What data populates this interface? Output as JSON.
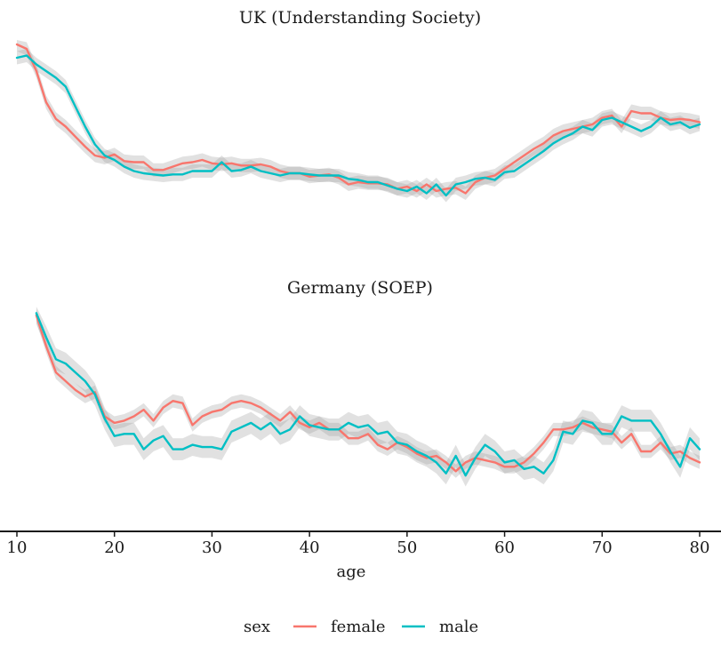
{
  "chart_data": {
    "type": "line",
    "xlabel": "age",
    "xlim": [
      10,
      80
    ],
    "x_ticks": [
      10,
      20,
      30,
      40,
      50,
      60,
      70,
      80
    ],
    "y_ticks_visible": false,
    "grid": false,
    "legend": {
      "title": "sex",
      "position": "bottom",
      "entries": [
        {
          "label": "female",
          "color": "#F8766D"
        },
        {
          "label": "male",
          "color": "#00BFC4"
        }
      ]
    },
    "panels": [
      {
        "title": "UK (Understanding Society)",
        "ylim": [
          0,
          1
        ],
        "series": [
          {
            "name": "female",
            "color": "#F8766D",
            "x": [
              10,
              11,
              12,
              13,
              14,
              15,
              16,
              17,
              18,
              19,
              20,
              21,
              22,
              23,
              24,
              25,
              26,
              27,
              28,
              29,
              30,
              31,
              32,
              33,
              34,
              35,
              36,
              37,
              38,
              39,
              40,
              41,
              42,
              43,
              44,
              45,
              46,
              47,
              48,
              49,
              50,
              51,
              52,
              53,
              54,
              55,
              56,
              57,
              58,
              59,
              60,
              61,
              62,
              63,
              64,
              65,
              66,
              67,
              68,
              69,
              70,
              71,
              72,
              73,
              74,
              75,
              76,
              77,
              78,
              79,
              80
            ],
            "y": [
              0.98,
              0.96,
              0.86,
              0.72,
              0.645,
              0.61,
              0.565,
              0.52,
              0.48,
              0.47,
              0.485,
              0.455,
              0.45,
              0.45,
              0.415,
              0.415,
              0.43,
              0.445,
              0.45,
              0.46,
              0.445,
              0.44,
              0.445,
              0.435,
              0.435,
              0.44,
              0.43,
              0.41,
              0.4,
              0.4,
              0.385,
              0.39,
              0.395,
              0.38,
              0.35,
              0.36,
              0.355,
              0.355,
              0.35,
              0.33,
              0.34,
              0.32,
              0.35,
              0.32,
              0.33,
              0.335,
              0.31,
              0.36,
              0.38,
              0.39,
              0.42,
              0.45,
              0.48,
              0.51,
              0.535,
              0.57,
              0.59,
              0.6,
              0.61,
              0.62,
              0.65,
              0.66,
              0.61,
              0.68,
              0.67,
              0.67,
              0.65,
              0.64,
              0.645,
              0.64,
              0.63
            ]
          },
          {
            "name": "male",
            "color": "#00BFC4",
            "x": [
              10,
              11,
              12,
              13,
              14,
              15,
              16,
              17,
              18,
              19,
              20,
              21,
              22,
              23,
              24,
              25,
              26,
              27,
              28,
              29,
              30,
              31,
              32,
              33,
              34,
              35,
              36,
              37,
              38,
              39,
              40,
              41,
              42,
              43,
              44,
              45,
              46,
              47,
              48,
              49,
              50,
              51,
              52,
              53,
              54,
              55,
              56,
              57,
              58,
              59,
              60,
              61,
              62,
              63,
              64,
              65,
              66,
              67,
              68,
              69,
              70,
              71,
              72,
              73,
              74,
              75,
              76,
              77,
              78,
              79,
              80
            ],
            "y": [
              0.92,
              0.93,
              0.89,
              0.86,
              0.83,
              0.79,
              0.7,
              0.61,
              0.53,
              0.48,
              0.46,
              0.43,
              0.41,
              0.4,
              0.395,
              0.39,
              0.395,
              0.395,
              0.41,
              0.41,
              0.41,
              0.45,
              0.41,
              0.415,
              0.43,
              0.41,
              0.4,
              0.39,
              0.4,
              0.4,
              0.395,
              0.39,
              0.39,
              0.39,
              0.375,
              0.37,
              0.36,
              0.36,
              0.345,
              0.33,
              0.32,
              0.34,
              0.31,
              0.35,
              0.3,
              0.35,
              0.36,
              0.375,
              0.38,
              0.37,
              0.405,
              0.41,
              0.44,
              0.47,
              0.5,
              0.535,
              0.56,
              0.58,
              0.61,
              0.595,
              0.64,
              0.65,
              0.63,
              0.61,
              0.59,
              0.61,
              0.65,
              0.62,
              0.63,
              0.605,
              0.62
            ],
            "band_halfwidth": 0.03
          }
        ]
      },
      {
        "title": "Germany (SOEP)",
        "ylim": [
          0,
          1
        ],
        "series": [
          {
            "name": "female",
            "color": "#F8766D",
            "x": [
              12,
              13,
              14,
              15,
              16,
              17,
              18,
              19,
              20,
              21,
              22,
              23,
              24,
              25,
              26,
              27,
              28,
              29,
              30,
              31,
              32,
              33,
              34,
              35,
              36,
              37,
              38,
              39,
              40,
              41,
              42,
              43,
              44,
              45,
              46,
              47,
              48,
              49,
              50,
              51,
              52,
              53,
              54,
              55,
              56,
              57,
              58,
              59,
              60,
              61,
              62,
              63,
              64,
              65,
              66,
              67,
              68,
              69,
              70,
              71,
              72,
              73,
              74,
              75,
              76,
              77,
              78,
              79,
              80
            ],
            "y": [
              0.96,
              0.82,
              0.7,
              0.66,
              0.62,
              0.59,
              0.61,
              0.5,
              0.47,
              0.48,
              0.5,
              0.53,
              0.48,
              0.54,
              0.57,
              0.56,
              0.46,
              0.5,
              0.52,
              0.53,
              0.56,
              0.57,
              0.56,
              0.54,
              0.51,
              0.48,
              0.52,
              0.47,
              0.45,
              0.47,
              0.44,
              0.44,
              0.4,
              0.4,
              0.42,
              0.37,
              0.35,
              0.38,
              0.36,
              0.33,
              0.31,
              0.32,
              0.29,
              0.25,
              0.29,
              0.31,
              0.3,
              0.29,
              0.27,
              0.27,
              0.29,
              0.33,
              0.38,
              0.44,
              0.44,
              0.45,
              0.47,
              0.45,
              0.44,
              0.43,
              0.38,
              0.42,
              0.34,
              0.34,
              0.38,
              0.33,
              0.34,
              0.31,
              0.29
            ]
          },
          {
            "name": "male",
            "color": "#00BFC4",
            "x": [
              12,
              13,
              14,
              15,
              16,
              17,
              18,
              19,
              20,
              21,
              22,
              23,
              24,
              25,
              26,
              27,
              28,
              29,
              30,
              31,
              32,
              33,
              34,
              35,
              36,
              37,
              38,
              39,
              40,
              41,
              42,
              43,
              44,
              45,
              46,
              47,
              48,
              49,
              50,
              51,
              52,
              53,
              54,
              55,
              56,
              57,
              58,
              59,
              60,
              61,
              62,
              63,
              64,
              65,
              66,
              67,
              68,
              69,
              70,
              71,
              72,
              73,
              74,
              75,
              76,
              77,
              78,
              79,
              80
            ],
            "y": [
              0.97,
              0.86,
              0.76,
              0.74,
              0.7,
              0.66,
              0.6,
              0.49,
              0.41,
              0.42,
              0.42,
              0.35,
              0.39,
              0.41,
              0.35,
              0.35,
              0.37,
              0.36,
              0.36,
              0.35,
              0.43,
              0.45,
              0.47,
              0.44,
              0.47,
              0.42,
              0.44,
              0.5,
              0.46,
              0.45,
              0.44,
              0.44,
              0.47,
              0.45,
              0.46,
              0.42,
              0.43,
              0.38,
              0.37,
              0.34,
              0.32,
              0.29,
              0.24,
              0.32,
              0.23,
              0.31,
              0.37,
              0.34,
              0.29,
              0.3,
              0.26,
              0.27,
              0.24,
              0.3,
              0.43,
              0.42,
              0.48,
              0.47,
              0.42,
              0.42,
              0.5,
              0.48,
              0.48,
              0.48,
              0.42,
              0.34,
              0.27,
              0.4,
              0.35
            ],
            "band_halfwidth": 0.05
          }
        ]
      }
    ]
  }
}
